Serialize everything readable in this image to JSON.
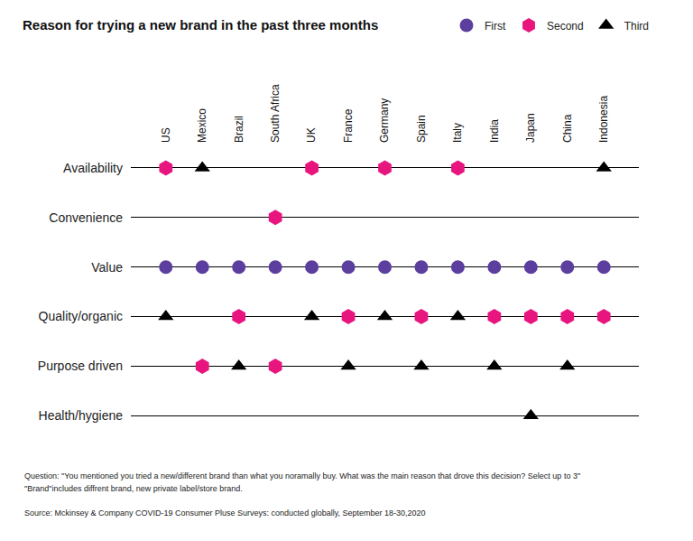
{
  "chart_data": {
    "type": "scatter",
    "title": "Reason for trying a new brand in the past three months",
    "categories": [
      "US",
      "Mexico",
      "Brazil",
      "South Africa",
      "UK",
      "France",
      "Germany",
      "Spain",
      "Italy",
      "India",
      "Japan",
      "China",
      "Indonesia"
    ],
    "y_categories": [
      "Availability",
      "Convenience",
      "Value",
      "Quality/organic",
      "Purpose driven",
      "Health/hygiene"
    ],
    "grid": true,
    "legend": "top right",
    "series": [
      {
        "name": "First",
        "color": "#5b3e9e",
        "marker": "circle",
        "x": [
          "US",
          "Mexico",
          "Brazil",
          "South Africa",
          "UK",
          "France",
          "Germany",
          "Spain",
          "Italy",
          "India",
          "Japan",
          "China",
          "Indonesia"
        ],
        "y": [
          "Value",
          "Value",
          "Value",
          "Value",
          "Value",
          "Value",
          "Value",
          "Value",
          "Value",
          "Value",
          "Value",
          "Value",
          "Value"
        ]
      },
      {
        "name": "Second",
        "color": "#e8157f",
        "marker": "hexagon",
        "x": [
          "US",
          "UK",
          "Germany",
          "Italy",
          "South Africa",
          "Brazil",
          "France",
          "Spain",
          "India",
          "Japan",
          "China",
          "Indonesia",
          "Mexico",
          "South Africa"
        ],
        "y": [
          "Availability",
          "Availability",
          "Availability",
          "Availability",
          "Convenience",
          "Quality/organic",
          "Quality/organic",
          "Quality/organic",
          "Quality/organic",
          "Quality/organic",
          "Quality/organic",
          "Quality/organic",
          "Purpose driven",
          "Purpose driven"
        ]
      },
      {
        "name": "Third",
        "color": "#000000",
        "marker": "triangle-up",
        "x": [
          "Mexico",
          "Indonesia",
          "US",
          "UK",
          "Germany",
          "Italy",
          "Brazil",
          "France",
          "Spain",
          "India",
          "China",
          "Japan"
        ],
        "y": [
          "Availability",
          "Availability",
          "Quality/organic",
          "Quality/organic",
          "Quality/organic",
          "Quality/organic",
          "Purpose driven",
          "Purpose driven",
          "Purpose driven",
          "Purpose driven",
          "Purpose driven",
          "Health/hygiene"
        ]
      }
    ],
    "notes": [
      "Question: \"You mentioned you tried a new/different brand than what you noramally buy. What was the main reason that drove this decision? Select up to 3\"",
      "\"Brand\"includes diffrent brand, new private label/store brand.",
      "Source: Mckinsey & Company COVID-19 Consumer Pluse Surveys: conducted globally, September 18-30,2020"
    ]
  }
}
